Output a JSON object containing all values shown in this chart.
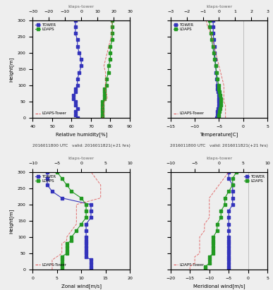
{
  "title_main": "2016011800 UTC   valid: 2016011821(+21 hrs)",
  "heights": [
    0,
    10,
    20,
    30,
    40,
    50,
    60,
    70,
    80,
    90,
    100,
    120,
    140,
    160,
    180,
    200,
    220,
    240,
    260,
    280,
    300
  ],
  "tower_rh": [
    63,
    62,
    62,
    63,
    62,
    62,
    61,
    61,
    62,
    62,
    63,
    63,
    64,
    65,
    65,
    64,
    63,
    63,
    62,
    62,
    62
  ],
  "ldaps_rh": [
    76,
    76,
    76,
    76,
    76,
    76,
    77,
    77,
    77,
    77,
    78,
    78,
    79,
    79,
    80,
    80,
    80,
    81,
    81,
    81,
    81
  ],
  "tower_temp": [
    -5.5,
    -5.4,
    -5.3,
    -5.2,
    -5.1,
    -5.0,
    -5.0,
    -5.1,
    -5.2,
    -5.3,
    -5.4,
    -5.5,
    -5.6,
    -5.7,
    -5.8,
    -5.9,
    -6.0,
    -6.1,
    -6.2,
    -6.2,
    -6.2
  ],
  "ldaps_temp": [
    -5.1,
    -5.0,
    -4.9,
    -4.8,
    -4.7,
    -4.7,
    -4.7,
    -4.8,
    -4.9,
    -5.0,
    -5.1,
    -5.3,
    -5.5,
    -5.7,
    -5.9,
    -6.1,
    -6.3,
    -6.5,
    -6.7,
    -6.9,
    -7.0
  ],
  "tower_zonal": [
    12,
    12,
    12,
    12,
    11,
    11,
    11,
    11,
    11,
    11,
    11,
    11,
    11,
    12,
    12,
    12,
    6,
    4,
    3,
    3,
    3
  ],
  "ldaps_zonal": [
    6,
    6,
    6,
    6,
    6,
    7,
    7,
    7,
    7,
    8,
    8,
    9,
    10,
    11,
    11,
    11,
    10,
    8,
    7,
    6,
    5
  ],
  "tower_merid": [
    -5,
    -5,
    -5,
    -5,
    -5,
    -5,
    -5,
    -5,
    -5,
    -5,
    -5,
    -5,
    -5,
    -5,
    -5,
    -4,
    -4,
    -4,
    -4,
    -5,
    -5
  ],
  "ldaps_merid": [
    -11,
    -11,
    -10,
    -10,
    -10,
    -9,
    -9,
    -9,
    -9,
    -9,
    -9,
    -8,
    -8,
    -7,
    -7,
    -6,
    -6,
    -5,
    -4,
    -4,
    -3
  ],
  "rh_xlim": [
    40,
    90
  ],
  "rh_xticks": [
    40,
    50,
    60,
    70,
    80,
    90
  ],
  "rh_diff_xlim": [
    -30,
    30
  ],
  "rh_diff_xticks": [
    -30,
    -20,
    -10,
    0,
    10,
    20,
    30
  ],
  "temp_xlim": [
    -15,
    5
  ],
  "temp_xticks": [
    -15,
    -10,
    -5,
    0,
    5
  ],
  "temp_diff_xlim": [
    -3,
    3
  ],
  "temp_diff_xticks": [
    -3,
    -2,
    -1,
    0,
    1,
    2,
    3
  ],
  "zonal_xlim": [
    0,
    20
  ],
  "zonal_xticks": [
    0,
    5,
    10,
    15,
    20
  ],
  "zonal_diff_xlim": [
    -10,
    10
  ],
  "zonal_diff_xticks": [
    -10,
    -5,
    0,
    5,
    10
  ],
  "merid_xlim": [
    -20,
    5
  ],
  "merid_xticks": [
    -20,
    -15,
    -10,
    -5,
    0,
    5
  ],
  "merid_diff_xlim": [
    -10,
    10
  ],
  "merid_diff_xticks": [
    -10,
    -5,
    0,
    5,
    10
  ],
  "ylim": [
    0,
    300
  ],
  "yticks": [
    0,
    50,
    100,
    150,
    200,
    250,
    300
  ],
  "tower_color": "#3333bb",
  "ldaps_color": "#229922",
  "diff_color": "#dd4444",
  "bg_color": "#eeeeee",
  "xlabel_rh": "Relative humidity[%]",
  "xlabel_temp": "Temperature[C]",
  "xlabel_zonal": "Zonal wind[m/s]",
  "xlabel_merid": "Meridional wind[m/s]",
  "ylabel": "Height[m]",
  "top_label": "ldaps-tower",
  "legend_tower": "TOWER",
  "legend_ldaps": "LDAPS",
  "legend_diff": "LDAPS-Tower"
}
